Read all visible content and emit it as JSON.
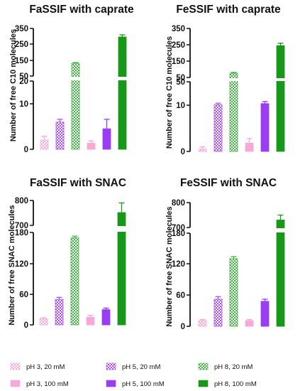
{
  "colors": {
    "pH3_20": "#f7a8d6",
    "pH3_100": "#f7a8d6",
    "pH5_20": "#b14cf0",
    "pH5_100": "#9b3df5",
    "pH8_20": "#43b343",
    "pH8_100": "#189818",
    "axis": "#111111"
  },
  "legend": [
    {
      "label": "pH 3, 20 mM",
      "key": "pH3_20",
      "pattern": "checker-pink"
    },
    {
      "label": "pH 5, 20 mM",
      "key": "pH5_20",
      "pattern": "checker-purple"
    },
    {
      "label": "pH 8, 20 mM",
      "key": "pH8_20",
      "pattern": "checker-green"
    },
    {
      "label": "pH 3, 100 mM",
      "key": "pH3_100",
      "pattern": "solid"
    },
    {
      "label": "pH 5, 100 mM",
      "key": "pH5_100",
      "pattern": "solid"
    },
    {
      "label": "pH 8, 100 mM",
      "key": "pH8_100",
      "pattern": "solid"
    }
  ],
  "chart_data": [
    {
      "type": "bar",
      "title": "FaSSIF with caprate",
      "ylabel": "Number of free C10 molecules",
      "categories": [
        "pH 3, 20 mM",
        "pH 5, 20 mM",
        "pH 8, 20 mM",
        "pH 3, 100 mM",
        "pH 5, 100 mM",
        "pH 8, 100 mM"
      ],
      "values": [
        2.3,
        6.1,
        130,
        1.5,
        4.7,
        290
      ],
      "errors": [
        0.8,
        0.6,
        5,
        0.6,
        2.0,
        15
      ],
      "y_axis_break": true,
      "lower_segment": {
        "ylim": [
          0,
          20
        ],
        "ticks": [
          "0",
          "10",
          "20"
        ]
      },
      "upper_segment": {
        "ylim": [
          50,
          350
        ],
        "ticks": [
          "50",
          "150",
          "250",
          "350"
        ]
      }
    },
    {
      "type": "bar",
      "title": "FeSSIF with caprate",
      "ylabel": "Number of free C10 molecules",
      "categories": [
        "pH 3, 20 mM",
        "pH 5, 20 mM",
        "pH 8, 20 mM",
        "pH 3, 100 mM",
        "pH 5, 100 mM",
        "pH 8, 100 mM"
      ],
      "values": [
        0.5,
        10.5,
        68,
        1.8,
        12,
        245
      ],
      "errors": [
        0.5,
        2.0,
        6,
        1.0,
        2.5,
        15
      ],
      "y_axis_break": true,
      "lower_segment": {
        "ylim": [
          0,
          50
        ],
        "ticks": [
          "0",
          "10",
          "50"
        ]
      },
      "upper_segment": {
        "ylim": [
          50,
          350
        ],
        "ticks": [
          "50",
          "150",
          "250",
          "350"
        ]
      }
    },
    {
      "type": "bar",
      "title": "FaSSIF with SNAC",
      "ylabel": "Number of free SNAC molecules",
      "categories": [
        "pH 3, 20 mM",
        "pH 5, 20 mM",
        "pH 8, 20 mM",
        "pH 3, 100 mM",
        "pH 5, 100 mM",
        "pH 8, 100 mM"
      ],
      "values": [
        12,
        50,
        170,
        15,
        30,
        750
      ],
      "errors": [
        2,
        4,
        3,
        4,
        3,
        40
      ],
      "y_axis_break": true,
      "lower_segment": {
        "ylim": [
          0,
          180
        ],
        "ticks": [
          "0",
          "60",
          "120",
          "180"
        ]
      },
      "upper_segment": {
        "ylim": [
          700,
          800
        ],
        "ticks": [
          "700",
          "800"
        ]
      }
    },
    {
      "type": "bar",
      "title": "FeSSIF with SNAC",
      "ylabel": "Number of free SNAC molecules",
      "categories": [
        "pH 3, 20 mM",
        "pH 5, 20 mM",
        "pH 8, 20 mM",
        "pH 3, 100 mM",
        "pH 5, 100 mM",
        "pH 8, 100 mM"
      ],
      "values": [
        11,
        52,
        130,
        11,
        48,
        730
      ],
      "errors": [
        2,
        5,
        4,
        2,
        4,
        20
      ],
      "y_axis_break": true,
      "lower_segment": {
        "ylim": [
          0,
          180
        ],
        "ticks": [
          "0",
          "60",
          "120",
          "180"
        ]
      },
      "upper_segment": {
        "ylim": [
          700,
          800
        ],
        "ticks": [
          "700",
          "800"
        ]
      }
    }
  ]
}
